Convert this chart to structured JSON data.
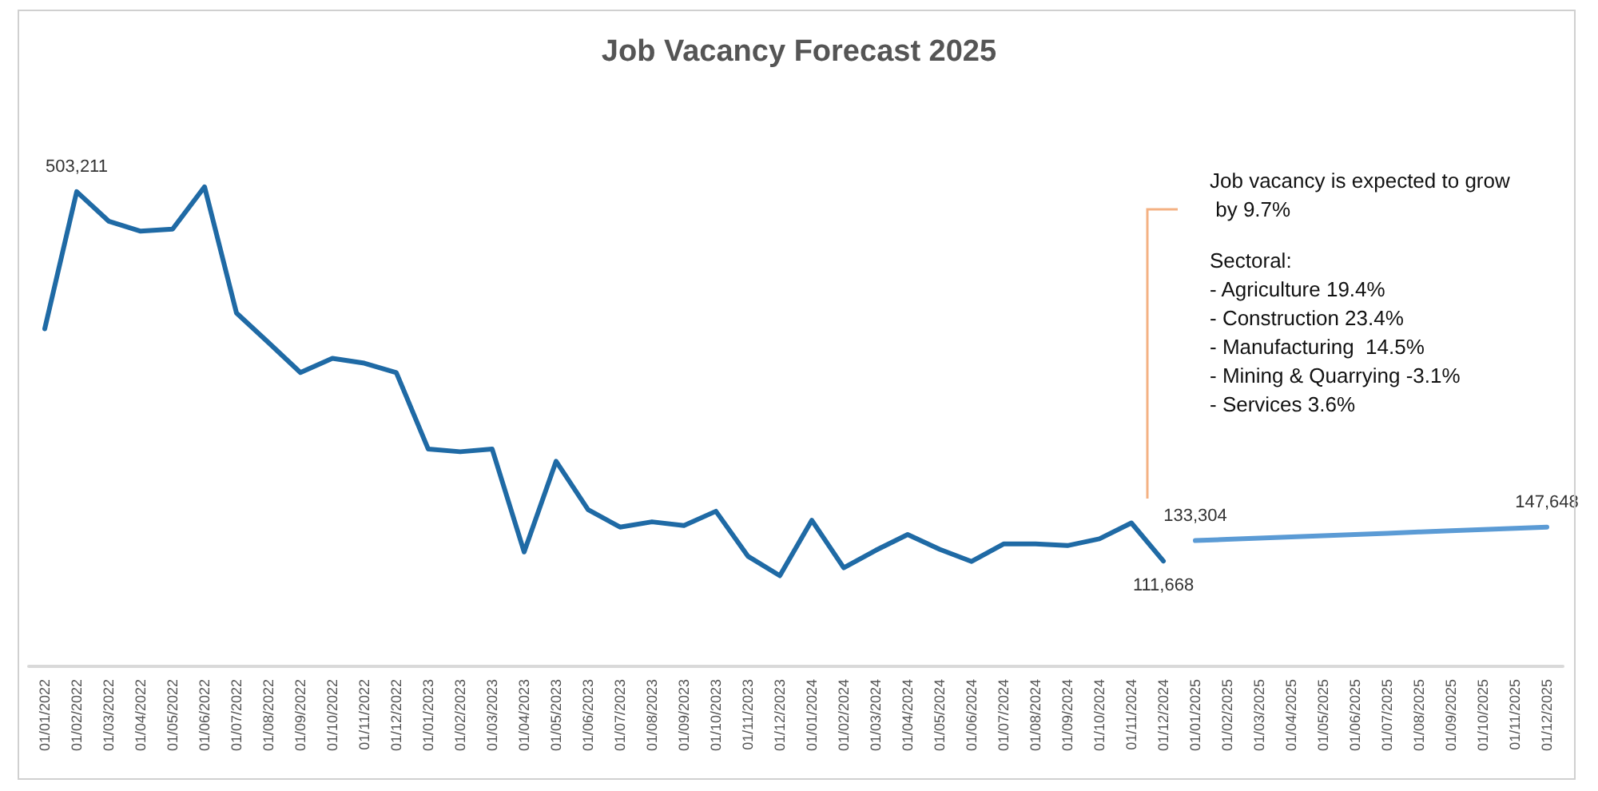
{
  "chart_data": {
    "type": "line",
    "title": "Job Vacancy Forecast 2025",
    "categories": [
      "01/01/2022",
      "01/02/2022",
      "01/03/2022",
      "01/04/2022",
      "01/05/2022",
      "01/06/2022",
      "01/07/2022",
      "01/08/2022",
      "01/09/2022",
      "01/10/2022",
      "01/11/2022",
      "01/12/2022",
      "01/01/2023",
      "01/02/2023",
      "01/03/2023",
      "01/04/2023",
      "01/05/2023",
      "01/06/2023",
      "01/07/2023",
      "01/08/2023",
      "01/09/2023",
      "01/10/2023",
      "01/11/2023",
      "01/12/2023",
      "01/01/2024",
      "01/02/2024",
      "01/03/2024",
      "01/04/2024",
      "01/05/2024",
      "01/06/2024",
      "01/07/2024",
      "01/08/2024",
      "01/09/2024",
      "01/10/2024",
      "01/11/2024",
      "01/12/2024",
      "01/01/2025",
      "01/02/2025",
      "01/03/2025",
      "01/04/2025",
      "01/05/2025",
      "01/06/2025",
      "01/07/2025",
      "01/08/2025",
      "01/09/2025",
      "01/10/2025",
      "01/11/2025",
      "01/12/2025"
    ],
    "series": [
      {
        "color": "#1f6aa5",
        "values": [
          357800,
          503211,
          471900,
          461300,
          463500,
          508300,
          374600,
          343200,
          311400,
          326500,
          321400,
          311400,
          230300,
          227500,
          230300,
          121300,
          217400,
          166100,
          147600,
          153200,
          149300,
          164400,
          116800,
          96100,
          154800,
          104500,
          123000,
          139700,
          124100,
          111200,
          129700,
          129700,
          128000,
          135200,
          152000,
          111668,
          null,
          null,
          null,
          null,
          null,
          null,
          null,
          null,
          null,
          null,
          null,
          null
        ],
        "value_labels": [
          null,
          "503,211",
          null,
          null,
          null,
          null,
          null,
          null,
          null,
          null,
          null,
          null,
          null,
          null,
          null,
          null,
          null,
          null,
          null,
          null,
          null,
          null,
          null,
          null,
          null,
          null,
          null,
          null,
          null,
          null,
          null,
          null,
          null,
          null,
          null,
          "111,668",
          null,
          null,
          null,
          null,
          null,
          null,
          null,
          null,
          null,
          null,
          null,
          null
        ]
      },
      {
        "color": "#5b9bd5",
        "values": [
          null,
          null,
          null,
          null,
          null,
          null,
          null,
          null,
          null,
          null,
          null,
          null,
          null,
          null,
          null,
          null,
          null,
          null,
          null,
          null,
          null,
          null,
          null,
          null,
          null,
          null,
          null,
          null,
          null,
          null,
          null,
          null,
          null,
          null,
          null,
          null,
          133304,
          134600,
          135900,
          137200,
          138500,
          139800,
          141100,
          142400,
          143700,
          145000,
          146300,
          147648
        ],
        "value_labels": [
          null,
          null,
          null,
          null,
          null,
          null,
          null,
          null,
          null,
          null,
          null,
          null,
          null,
          null,
          null,
          null,
          null,
          null,
          null,
          null,
          null,
          null,
          null,
          null,
          null,
          null,
          null,
          null,
          null,
          null,
          null,
          null,
          null,
          null,
          null,
          null,
          "133,304",
          null,
          null,
          null,
          null,
          null,
          null,
          null,
          null,
          null,
          null,
          "147,648"
        ]
      }
    ],
    "tick_labels": "x",
    "grid": false,
    "marker": "none",
    "line_style": "solid",
    "annotations": [
      "Job vacancy is expected to grow by 9.7%",
      "Sectoral:",
      "- Agriculture 19.4%",
      "- Construction 23.4%",
      "- Manufacturing  14.5%",
      "- Mining & Quarrying -3.1%",
      "- Services 3.6%"
    ]
  }
}
